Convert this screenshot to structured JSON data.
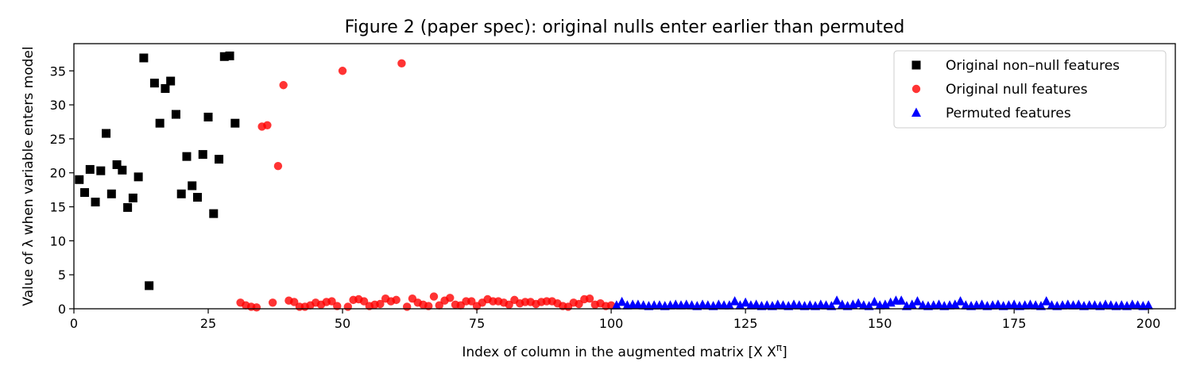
{
  "chart_data": {
    "type": "scatter",
    "title": "Figure 2 (paper spec): original nulls enter earlier than permuted",
    "xlabel": "Index of column in the augmented matrix [X Xπ]",
    "ylabel": "Value of λ when variable enters model",
    "xlim": [
      0,
      205
    ],
    "ylim": [
      0,
      39
    ],
    "xticks": [
      0,
      25,
      50,
      75,
      100,
      125,
      150,
      175,
      200
    ],
    "yticks": [
      0,
      5,
      10,
      15,
      20,
      25,
      30,
      35
    ],
    "grid": false,
    "legend_position": "top-right",
    "series": [
      {
        "name": "Original non–null features",
        "marker": "square",
        "color": "#000000",
        "points": [
          [
            1,
            19.0
          ],
          [
            2,
            17.1
          ],
          [
            3,
            20.5
          ],
          [
            4,
            15.7
          ],
          [
            5,
            20.3
          ],
          [
            6,
            25.8
          ],
          [
            7,
            16.9
          ],
          [
            8,
            21.2
          ],
          [
            9,
            20.4
          ],
          [
            10,
            14.9
          ],
          [
            11,
            16.3
          ],
          [
            12,
            19.4
          ],
          [
            13,
            36.9
          ],
          [
            14,
            3.4
          ],
          [
            15,
            33.2
          ],
          [
            16,
            27.3
          ],
          [
            17,
            32.4
          ],
          [
            18,
            33.5
          ],
          [
            19,
            28.6
          ],
          [
            20,
            16.9
          ],
          [
            21,
            22.4
          ],
          [
            22,
            18.1
          ],
          [
            23,
            16.4
          ],
          [
            24,
            22.7
          ],
          [
            25,
            28.2
          ],
          [
            26,
            14.0
          ],
          [
            27,
            22.0
          ],
          [
            28,
            37.1
          ],
          [
            29,
            37.2
          ],
          [
            30,
            27.3
          ]
        ]
      },
      {
        "name": "Original null features",
        "marker": "circle",
        "color": "#ff0000",
        "points": [
          [
            31,
            0.9
          ],
          [
            32,
            0.5
          ],
          [
            33,
            0.3
          ],
          [
            34,
            0.2
          ],
          [
            35,
            26.8
          ],
          [
            36,
            27.0
          ],
          [
            37,
            0.9
          ],
          [
            38,
            21.0
          ],
          [
            39,
            32.9
          ],
          [
            40,
            1.2
          ],
          [
            41,
            1.0
          ],
          [
            42,
            0.3
          ],
          [
            43,
            0.3
          ],
          [
            44,
            0.5
          ],
          [
            45,
            0.9
          ],
          [
            46,
            0.6
          ],
          [
            47,
            1.0
          ],
          [
            48,
            1.1
          ],
          [
            49,
            0.4
          ],
          [
            50,
            35.0
          ],
          [
            51,
            0.3
          ],
          [
            52,
            1.3
          ],
          [
            53,
            1.4
          ],
          [
            54,
            1.1
          ],
          [
            55,
            0.4
          ],
          [
            56,
            0.6
          ],
          [
            57,
            0.7
          ],
          [
            58,
            1.5
          ],
          [
            59,
            1.1
          ],
          [
            60,
            1.3
          ],
          [
            61,
            36.1
          ],
          [
            62,
            0.3
          ],
          [
            63,
            1.5
          ],
          [
            64,
            0.9
          ],
          [
            65,
            0.6
          ],
          [
            66,
            0.4
          ],
          [
            67,
            1.8
          ],
          [
            68,
            0.5
          ],
          [
            69,
            1.2
          ],
          [
            70,
            1.6
          ],
          [
            71,
            0.6
          ],
          [
            72,
            0.5
          ],
          [
            73,
            1.1
          ],
          [
            74,
            1.1
          ],
          [
            75,
            0.4
          ],
          [
            76,
            0.9
          ],
          [
            77,
            1.4
          ],
          [
            78,
            1.1
          ],
          [
            79,
            1.1
          ],
          [
            80,
            0.9
          ],
          [
            81,
            0.6
          ],
          [
            82,
            1.3
          ],
          [
            83,
            0.8
          ],
          [
            84,
            1.0
          ],
          [
            85,
            1.0
          ],
          [
            86,
            0.7
          ],
          [
            87,
            1.0
          ],
          [
            88,
            1.1
          ],
          [
            89,
            1.1
          ],
          [
            90,
            0.8
          ],
          [
            91,
            0.4
          ],
          [
            92,
            0.3
          ],
          [
            93,
            0.9
          ],
          [
            94,
            0.7
          ],
          [
            95,
            1.4
          ],
          [
            96,
            1.5
          ],
          [
            97,
            0.6
          ],
          [
            98,
            0.8
          ],
          [
            99,
            0.4
          ],
          [
            100,
            0.5
          ]
        ]
      },
      {
        "name": "Permuted features",
        "marker": "triangle",
        "color": "#0000ff",
        "points": [
          [
            101,
            0.5
          ],
          [
            102,
            1.0
          ],
          [
            103,
            0.5
          ],
          [
            104,
            0.6
          ],
          [
            105,
            0.6
          ],
          [
            106,
            0.5
          ],
          [
            107,
            0.4
          ],
          [
            108,
            0.5
          ],
          [
            109,
            0.5
          ],
          [
            110,
            0.4
          ],
          [
            111,
            0.5
          ],
          [
            112,
            0.6
          ],
          [
            113,
            0.5
          ],
          [
            114,
            0.6
          ],
          [
            115,
            0.5
          ],
          [
            116,
            0.4
          ],
          [
            117,
            0.6
          ],
          [
            118,
            0.5
          ],
          [
            119,
            0.4
          ],
          [
            120,
            0.6
          ],
          [
            121,
            0.5
          ],
          [
            122,
            0.5
          ],
          [
            123,
            1.1
          ],
          [
            124,
            0.5
          ],
          [
            125,
            0.9
          ],
          [
            126,
            0.5
          ],
          [
            127,
            0.6
          ],
          [
            128,
            0.4
          ],
          [
            129,
            0.5
          ],
          [
            130,
            0.4
          ],
          [
            131,
            0.6
          ],
          [
            132,
            0.5
          ],
          [
            133,
            0.4
          ],
          [
            134,
            0.6
          ],
          [
            135,
            0.5
          ],
          [
            136,
            0.4
          ],
          [
            137,
            0.5
          ],
          [
            138,
            0.4
          ],
          [
            139,
            0.6
          ],
          [
            140,
            0.5
          ],
          [
            141,
            0.4
          ],
          [
            142,
            1.2
          ],
          [
            143,
            0.6
          ],
          [
            144,
            0.4
          ],
          [
            145,
            0.6
          ],
          [
            146,
            0.8
          ],
          [
            147,
            0.5
          ],
          [
            148,
            0.4
          ],
          [
            149,
            1.0
          ],
          [
            150,
            0.5
          ],
          [
            151,
            0.6
          ],
          [
            152,
            0.9
          ],
          [
            153,
            1.2
          ],
          [
            154,
            1.2
          ],
          [
            155,
            0.4
          ],
          [
            156,
            0.6
          ],
          [
            157,
            1.1
          ],
          [
            158,
            0.5
          ],
          [
            159,
            0.4
          ],
          [
            160,
            0.5
          ],
          [
            161,
            0.6
          ],
          [
            162,
            0.4
          ],
          [
            163,
            0.5
          ],
          [
            164,
            0.6
          ],
          [
            165,
            1.1
          ],
          [
            166,
            0.5
          ],
          [
            167,
            0.4
          ],
          [
            168,
            0.5
          ],
          [
            169,
            0.6
          ],
          [
            170,
            0.4
          ],
          [
            171,
            0.5
          ],
          [
            172,
            0.6
          ],
          [
            173,
            0.4
          ],
          [
            174,
            0.5
          ],
          [
            175,
            0.6
          ],
          [
            176,
            0.4
          ],
          [
            177,
            0.5
          ],
          [
            178,
            0.6
          ],
          [
            179,
            0.5
          ],
          [
            180,
            0.4
          ],
          [
            181,
            1.1
          ],
          [
            182,
            0.5
          ],
          [
            183,
            0.4
          ],
          [
            184,
            0.5
          ],
          [
            185,
            0.6
          ],
          [
            186,
            0.5
          ],
          [
            187,
            0.6
          ],
          [
            188,
            0.4
          ],
          [
            189,
            0.5
          ],
          [
            190,
            0.5
          ],
          [
            191,
            0.4
          ],
          [
            192,
            0.6
          ],
          [
            193,
            0.5
          ],
          [
            194,
            0.4
          ],
          [
            195,
            0.5
          ],
          [
            196,
            0.4
          ],
          [
            197,
            0.6
          ],
          [
            198,
            0.5
          ],
          [
            199,
            0.4
          ],
          [
            200,
            0.5
          ]
        ]
      }
    ]
  }
}
